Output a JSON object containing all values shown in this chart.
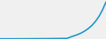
{
  "line_color": "#2196c8",
  "line_width": 1.2,
  "background_color": "#f0f0f0",
  "x_values": [
    0,
    1,
    2,
    3,
    4,
    5,
    6,
    7,
    8,
    9,
    10,
    11,
    12,
    13,
    14,
    15,
    16,
    17,
    18,
    19,
    20,
    21,
    22,
    23,
    24,
    25,
    26,
    27,
    28,
    29,
    30
  ],
  "y_values": [
    20,
    22,
    23,
    24,
    25,
    26,
    27,
    28,
    30,
    32,
    34,
    36,
    38,
    40,
    43,
    46,
    50,
    54,
    58,
    63,
    200,
    320,
    450,
    600,
    800,
    1050,
    1350,
    1750,
    2250,
    2900,
    3700
  ],
  "ylim": [
    0,
    3900
  ],
  "xlim": [
    0,
    30
  ]
}
